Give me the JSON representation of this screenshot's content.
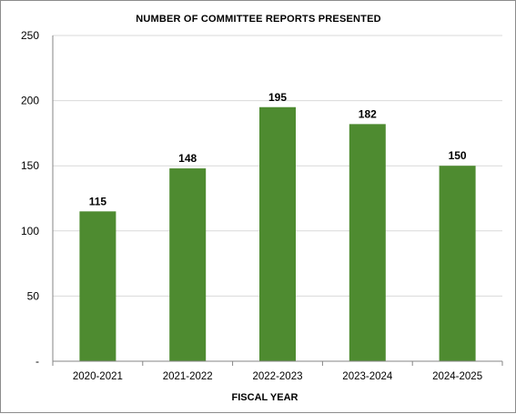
{
  "chart_data": {
    "type": "bar",
    "title": "NUMBER  OF COMMITTEE  REPORTS  PRESENTED",
    "xlabel": "FISCAL YEAR",
    "ylabel": "",
    "categories": [
      "2020-2021",
      "2021-2022",
      "2022-2023",
      "2023-2024",
      "2024-2025"
    ],
    "values": [
      115,
      148,
      195,
      182,
      150
    ],
    "ylim": [
      0,
      250
    ],
    "yticks": [
      0,
      50,
      100,
      150,
      200,
      250
    ],
    "ytick_labels": [
      "-",
      "50",
      "100",
      "150",
      "200",
      "250"
    ],
    "grid": true,
    "legend": "none",
    "bar_color": "#4e8b30",
    "gridline_color": "#d9d9d9",
    "data_labels": true
  }
}
